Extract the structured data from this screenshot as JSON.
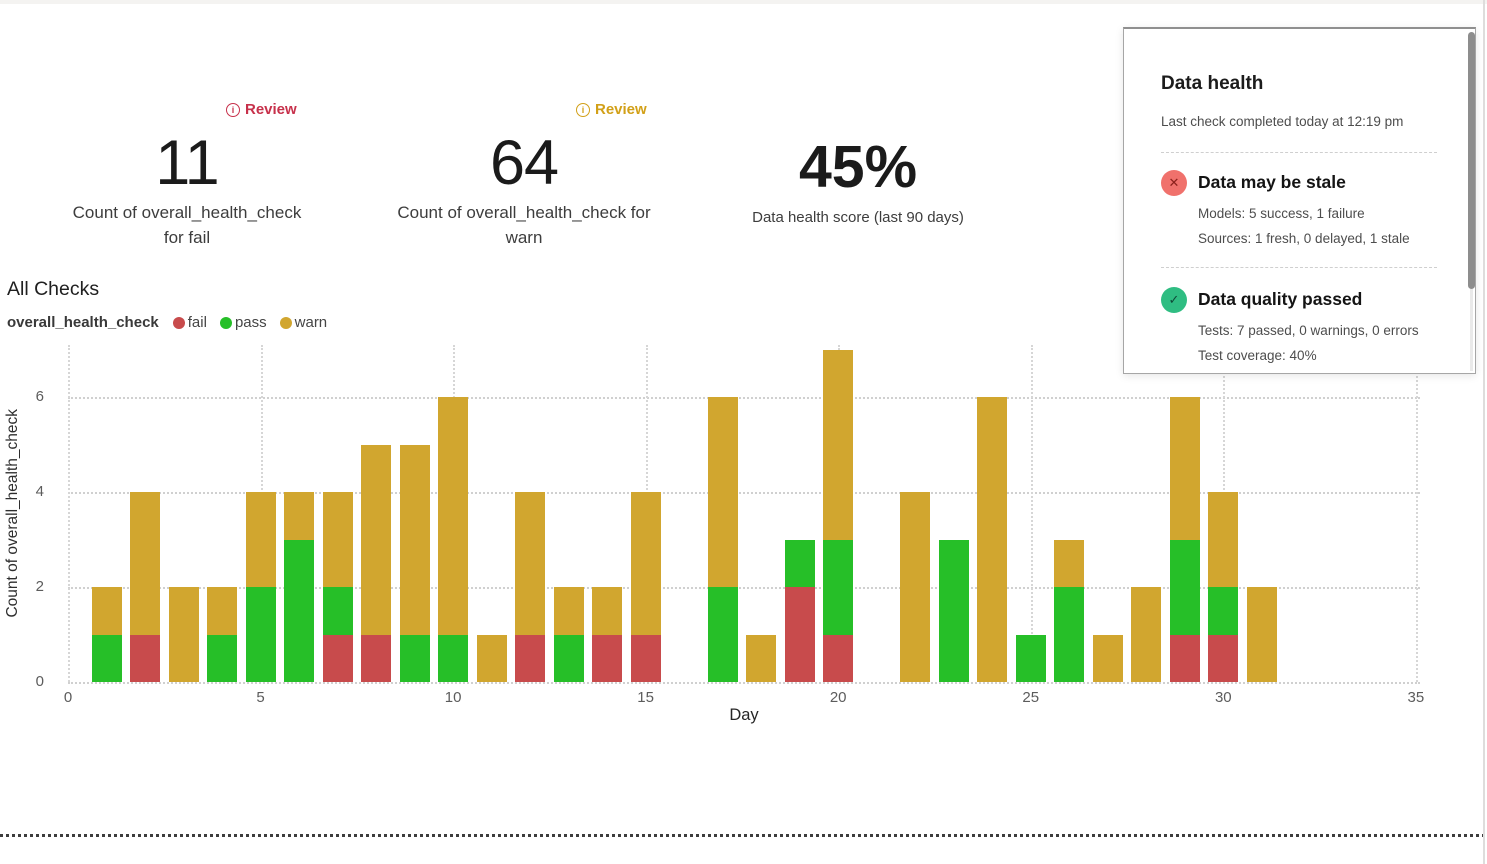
{
  "metrics": [
    {
      "value": "11",
      "label_lines": [
        "Count of overall_health_check",
        "for fail"
      ],
      "review": {
        "label": "Review",
        "color": "#c7314b"
      }
    },
    {
      "value": "64",
      "label_lines": [
        "Count of overall_health_check for",
        "warn"
      ],
      "review": {
        "label": "Review",
        "color": "#d2a018"
      }
    },
    {
      "value": "45%",
      "label_lines": [
        "Data health score (last 90 days)"
      ]
    }
  ],
  "chart": {
    "title": "All Checks",
    "legend_title": "overall_health_check",
    "legend": [
      {
        "label": "fail",
        "color": "#c84b4c"
      },
      {
        "label": "pass",
        "color": "#26bf28"
      },
      {
        "label": "warn",
        "color": "#d1a62f"
      }
    ]
  },
  "chart_data": {
    "type": "bar",
    "stacked": true,
    "title": "All Checks",
    "xlabel": "Day",
    "ylabel": "Count of overall_health_check",
    "x_ticks": [
      0,
      5,
      10,
      15,
      20,
      25,
      30,
      35
    ],
    "y_ticks": [
      0,
      2,
      4,
      6
    ],
    "xlim": [
      0,
      35.5
    ],
    "ylim": [
      0,
      7.1
    ],
    "grid": "dotted",
    "legend_position": "top-left",
    "days": [
      1,
      2,
      3,
      4,
      5,
      6,
      7,
      8,
      9,
      10,
      11,
      12,
      13,
      14,
      15,
      17,
      18,
      19,
      20,
      22,
      23,
      24,
      25,
      26,
      27,
      28,
      29,
      30,
      31
    ],
    "series": [
      {
        "name": "fail",
        "color": "#c84b4c",
        "values": [
          0,
          1,
          0,
          0,
          0,
          0,
          1,
          1,
          0,
          0,
          0,
          1,
          0,
          1,
          1,
          0,
          0,
          2,
          1,
          0,
          0,
          0,
          0,
          0,
          0,
          0,
          1,
          1,
          0
        ]
      },
      {
        "name": "pass",
        "color": "#26bf28",
        "values": [
          1,
          0,
          0,
          1,
          2,
          3,
          1,
          0,
          1,
          1,
          0,
          0,
          1,
          0,
          0,
          2,
          0,
          1,
          2,
          0,
          3,
          0,
          1,
          2,
          0,
          0,
          2,
          1,
          0
        ]
      },
      {
        "name": "warn",
        "color": "#d1a62f",
        "values": [
          1,
          3,
          2,
          1,
          2,
          1,
          2,
          4,
          4,
          5,
          1,
          3,
          1,
          1,
          3,
          4,
          1,
          0,
          4,
          4,
          0,
          6,
          0,
          1,
          1,
          2,
          3,
          2,
          2
        ]
      }
    ]
  },
  "panel": {
    "title": "Data health",
    "subtitle": "Last check completed today at 12:19 pm",
    "sections": [
      {
        "icon": "x-circle-icon",
        "icon_glyph": "✕",
        "icon_bg": "#f0716c",
        "icon_glyph_color": "#8c211c",
        "title": "Data may be stale",
        "lines": [
          "Models: 5 success, 1 failure",
          "Sources: 1 fresh, 0 delayed, 1 stale"
        ]
      },
      {
        "icon": "check-circle-icon",
        "icon_glyph": "✓",
        "icon_bg": "#2fbd82",
        "icon_glyph_color": "#0e4a38",
        "title": "Data quality passed",
        "lines": [
          "Tests: 7 passed, 0 warnings, 0 errors",
          "Test coverage: 40%"
        ]
      }
    ]
  }
}
